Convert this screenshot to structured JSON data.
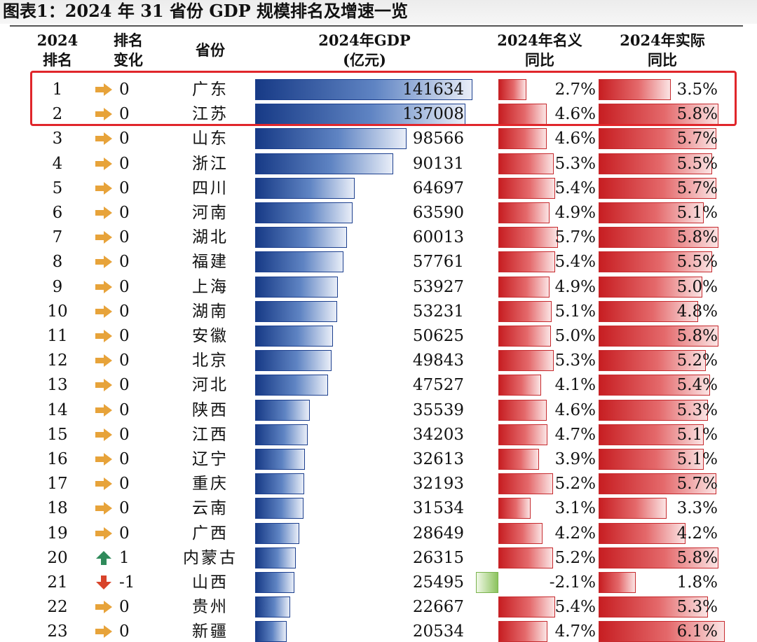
{
  "title": "图表1：2024 年 31 省份 GDP 规模排名及增速一览",
  "headers": {
    "rank": [
      "2024",
      "排名"
    ],
    "change": [
      "排名",
      "变化"
    ],
    "province": "省份",
    "gdp": [
      "2024年GDP",
      "(亿元)"
    ],
    "nominal": [
      "2024年名义",
      "同比"
    ],
    "real": [
      "2024年实际",
      "同比"
    ]
  },
  "colors": {
    "gdp_bar": "#1f4590",
    "growth_bar": "#d32a2e",
    "negative_bar": "#8cc35e",
    "highlight": "#e0262b",
    "arrow_flat": "#e7a33a",
    "arrow_up": "#2f8a5a",
    "arrow_down": "#d8432a"
  },
  "icons": {
    "flat": "right-arrow-icon",
    "up": "up-arrow-icon",
    "down": "down-arrow-icon"
  },
  "chart_data": {
    "type": "table",
    "columns": [
      "2024排名",
      "排名变化",
      "省份",
      "2024年GDP(亿元)",
      "2024年名义同比",
      "2024年实际同比"
    ],
    "gdp_max": 141634,
    "nominal_max": 5.7,
    "real_max": 6.1,
    "highlighted_ranks": [
      1,
      2
    ],
    "rows": [
      {
        "rank": "1",
        "dir": "flat",
        "change": "0",
        "province": "广东",
        "gdp": 141634,
        "gdp_label": "141634",
        "nominal": 2.7,
        "nominal_label": "2.7%",
        "real": 3.5,
        "real_label": "3.5%"
      },
      {
        "rank": "2",
        "dir": "flat",
        "change": "0",
        "province": "江苏",
        "gdp": 137008,
        "gdp_label": "137008",
        "nominal": 4.6,
        "nominal_label": "4.6%",
        "real": 5.8,
        "real_label": "5.8%"
      },
      {
        "rank": "3",
        "dir": "flat",
        "change": "0",
        "province": "山东",
        "gdp": 98566,
        "gdp_label": "98566",
        "nominal": 4.6,
        "nominal_label": "4.6%",
        "real": 5.7,
        "real_label": "5.7%"
      },
      {
        "rank": "4",
        "dir": "flat",
        "change": "0",
        "province": "浙江",
        "gdp": 90131,
        "gdp_label": "90131",
        "nominal": 5.3,
        "nominal_label": "5.3%",
        "real": 5.5,
        "real_label": "5.5%"
      },
      {
        "rank": "5",
        "dir": "flat",
        "change": "0",
        "province": "四川",
        "gdp": 64697,
        "gdp_label": "64697",
        "nominal": 5.4,
        "nominal_label": "5.4%",
        "real": 5.7,
        "real_label": "5.7%"
      },
      {
        "rank": "6",
        "dir": "flat",
        "change": "0",
        "province": "河南",
        "gdp": 63590,
        "gdp_label": "63590",
        "nominal": 4.9,
        "nominal_label": "4.9%",
        "real": 5.1,
        "real_label": "5.1%"
      },
      {
        "rank": "7",
        "dir": "flat",
        "change": "0",
        "province": "湖北",
        "gdp": 60013,
        "gdp_label": "60013",
        "nominal": 5.7,
        "nominal_label": "5.7%",
        "real": 5.8,
        "real_label": "5.8%"
      },
      {
        "rank": "8",
        "dir": "flat",
        "change": "0",
        "province": "福建",
        "gdp": 57761,
        "gdp_label": "57761",
        "nominal": 5.4,
        "nominal_label": "5.4%",
        "real": 5.5,
        "real_label": "5.5%"
      },
      {
        "rank": "9",
        "dir": "flat",
        "change": "0",
        "province": "上海",
        "gdp": 53927,
        "gdp_label": "53927",
        "nominal": 4.9,
        "nominal_label": "4.9%",
        "real": 5.0,
        "real_label": "5.0%"
      },
      {
        "rank": "10",
        "dir": "flat",
        "change": "0",
        "province": "湖南",
        "gdp": 53231,
        "gdp_label": "53231",
        "nominal": 5.1,
        "nominal_label": "5.1%",
        "real": 4.8,
        "real_label": "4.8%"
      },
      {
        "rank": "11",
        "dir": "flat",
        "change": "0",
        "province": "安徽",
        "gdp": 50625,
        "gdp_label": "50625",
        "nominal": 5.0,
        "nominal_label": "5.0%",
        "real": 5.8,
        "real_label": "5.8%"
      },
      {
        "rank": "12",
        "dir": "flat",
        "change": "0",
        "province": "北京",
        "gdp": 49843,
        "gdp_label": "49843",
        "nominal": 5.3,
        "nominal_label": "5.3%",
        "real": 5.2,
        "real_label": "5.2%"
      },
      {
        "rank": "13",
        "dir": "flat",
        "change": "0",
        "province": "河北",
        "gdp": 47527,
        "gdp_label": "47527",
        "nominal": 4.1,
        "nominal_label": "4.1%",
        "real": 5.4,
        "real_label": "5.4%"
      },
      {
        "rank": "14",
        "dir": "flat",
        "change": "0",
        "province": "陕西",
        "gdp": 35539,
        "gdp_label": "35539",
        "nominal": 4.6,
        "nominal_label": "4.6%",
        "real": 5.3,
        "real_label": "5.3%"
      },
      {
        "rank": "15",
        "dir": "flat",
        "change": "0",
        "province": "江西",
        "gdp": 34203,
        "gdp_label": "34203",
        "nominal": 4.7,
        "nominal_label": "4.7%",
        "real": 5.1,
        "real_label": "5.1%"
      },
      {
        "rank": "16",
        "dir": "flat",
        "change": "0",
        "province": "辽宁",
        "gdp": 32613,
        "gdp_label": "32613",
        "nominal": 3.9,
        "nominal_label": "3.9%",
        "real": 5.1,
        "real_label": "5.1%"
      },
      {
        "rank": "17",
        "dir": "flat",
        "change": "0",
        "province": "重庆",
        "gdp": 32193,
        "gdp_label": "32193",
        "nominal": 5.2,
        "nominal_label": "5.2%",
        "real": 5.7,
        "real_label": "5.7%"
      },
      {
        "rank": "18",
        "dir": "flat",
        "change": "0",
        "province": "云南",
        "gdp": 31534,
        "gdp_label": "31534",
        "nominal": 3.1,
        "nominal_label": "3.1%",
        "real": 3.3,
        "real_label": "3.3%"
      },
      {
        "rank": "19",
        "dir": "flat",
        "change": "0",
        "province": "广西",
        "gdp": 28649,
        "gdp_label": "28649",
        "nominal": 4.2,
        "nominal_label": "4.2%",
        "real": 4.2,
        "real_label": "4.2%"
      },
      {
        "rank": "20",
        "dir": "up",
        "change": "1",
        "province": "内蒙古",
        "gdp": 26315,
        "gdp_label": "26315",
        "nominal": 5.2,
        "nominal_label": "5.2%",
        "real": 5.8,
        "real_label": "5.8%"
      },
      {
        "rank": "21",
        "dir": "down",
        "change": "-1",
        "province": "山西",
        "gdp": 25495,
        "gdp_label": "25495",
        "nominal": -2.1,
        "nominal_label": "-2.1%",
        "real": 1.8,
        "real_label": "1.8%"
      },
      {
        "rank": "22",
        "dir": "flat",
        "change": "0",
        "province": "贵州",
        "gdp": 22667,
        "gdp_label": "22667",
        "nominal": 5.4,
        "nominal_label": "5.4%",
        "real": 5.3,
        "real_label": "5.3%"
      },
      {
        "rank": "23",
        "dir": "flat",
        "change": "0",
        "province": "新疆",
        "gdp": 20534,
        "gdp_label": "20534",
        "nominal": 4.7,
        "nominal_label": "4.7%",
        "real": 6.1,
        "real_label": "6.1%"
      }
    ]
  }
}
